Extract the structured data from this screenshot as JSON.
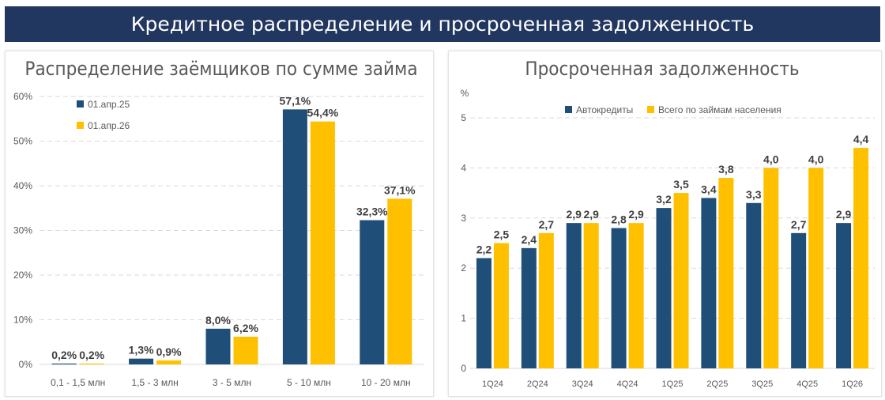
{
  "header": {
    "title": "Кредитное распределение и просроченная задолженность"
  },
  "colors": {
    "navy": "#1f4e79",
    "gold": "#ffc000",
    "banner": "#22375f",
    "grid": "#d9d9d9",
    "axis_text": "#595959"
  },
  "chart_data": [
    {
      "type": "bar",
      "title": "Распределение заёмщиков по сумме займа",
      "xlabel": "",
      "ylabel": "",
      "ylim": [
        0,
        60
      ],
      "yticks": [
        0,
        10,
        20,
        30,
        40,
        50,
        60
      ],
      "ytick_labels": [
        "0%",
        "10%",
        "20%",
        "30%",
        "40%",
        "50%",
        "60%"
      ],
      "categories": [
        "0,1 - 1,5 млн",
        "1,5 - 3 млн",
        "3 - 5 млн",
        "5 - 10 млн",
        "10 - 20 млн"
      ],
      "legend_position": "top-left",
      "grid": true,
      "series": [
        {
          "name": "01.апр.25",
          "color": "#1f4e79",
          "values": [
            0.2,
            1.3,
            8.0,
            57.1,
            32.3
          ],
          "labels": [
            "0,2%",
            "1,3%",
            "8,0%",
            "57,1%",
            "32,3%"
          ]
        },
        {
          "name": "01.апр.26",
          "color": "#ffc000",
          "values": [
            0.2,
            0.9,
            6.2,
            54.4,
            37.1
          ],
          "labels": [
            "0,2%",
            "0,9%",
            "6,2%",
            "54,4%",
            "37,1%"
          ]
        }
      ]
    },
    {
      "type": "bar",
      "title": "Просроченная задолженность",
      "unit": "%",
      "xlabel": "",
      "ylabel": "",
      "ylim": [
        0,
        5
      ],
      "yticks": [
        0,
        1,
        2,
        3,
        4,
        5
      ],
      "ytick_labels": [
        "0",
        "1",
        "2",
        "3",
        "4",
        "5"
      ],
      "categories": [
        "1Q24",
        "2Q24",
        "3Q24",
        "4Q24",
        "1Q25",
        "2Q25",
        "3Q25",
        "4Q25",
        "1Q26"
      ],
      "legend_position": "top-left",
      "grid": true,
      "series": [
        {
          "name": "Автокредиты",
          "color": "#1f4e79",
          "values": [
            2.2,
            2.4,
            2.9,
            2.8,
            3.2,
            3.4,
            3.3,
            2.7,
            2.9
          ],
          "labels": [
            "2,2",
            "2,4",
            "2,9",
            "2,8",
            "3,2",
            "3,4",
            "3,3",
            "2,7",
            "2,9"
          ]
        },
        {
          "name": "Всего по займам населения",
          "color": "#ffc000",
          "values": [
            2.5,
            2.7,
            2.9,
            2.9,
            3.5,
            3.8,
            4.0,
            4.0,
            4.4
          ],
          "labels": [
            "2,5",
            "2,7",
            "2,9",
            "2,9",
            "3,5",
            "3,8",
            "4,0",
            "4,0",
            "4,4"
          ]
        }
      ]
    }
  ]
}
